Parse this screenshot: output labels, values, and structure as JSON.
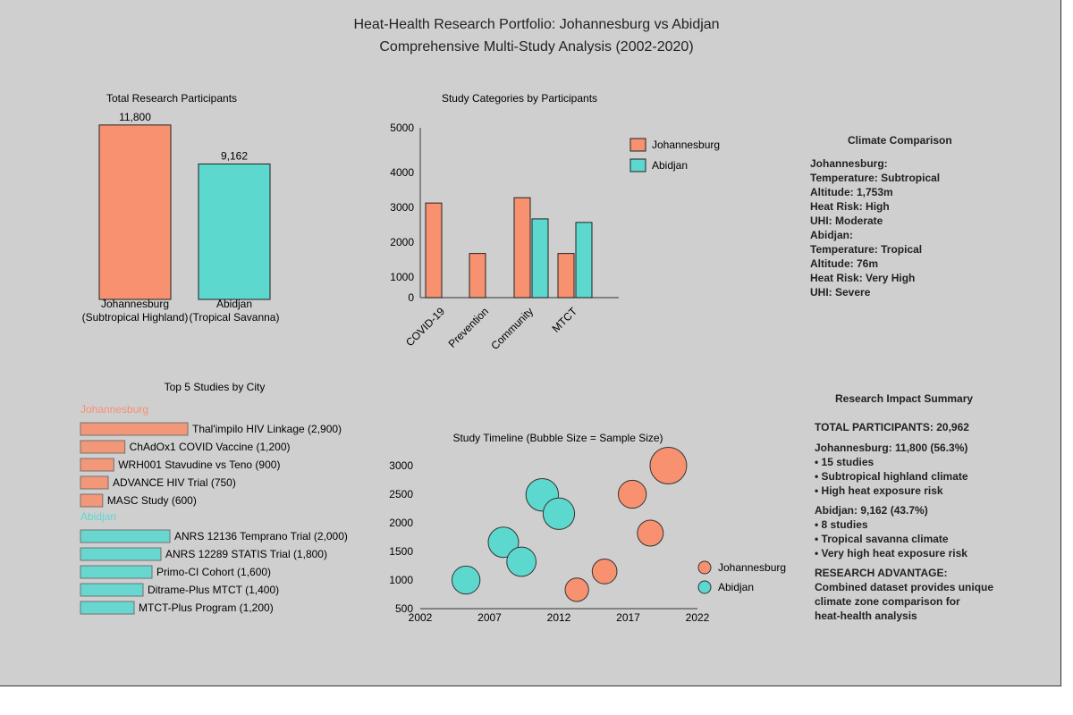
{
  "title": "Heat-Health Research Portfolio: Johannesburg vs Abidjan",
  "subtitle": "Comprehensive Multi-Study Analysis (2002-2020)",
  "colors": {
    "johannesburg": "#f79170",
    "abidjan": "#5cd8cf",
    "background": "#cfcfcf"
  },
  "chart_data": [
    {
      "type": "bar",
      "title": "Total Research Participants",
      "categories": [
        "Johannesburg\n(Subtropical Highland)",
        "Abidjan\n(Tropical Savanna)"
      ],
      "values": [
        11800,
        9162
      ],
      "data_labels": [
        "11,800",
        "9,162"
      ],
      "ylim": [
        0,
        13000
      ]
    },
    {
      "type": "bar",
      "title": "Study Categories by Participants",
      "categories": [
        "COVID-19",
        "Prevention",
        "Community",
        "MTCT"
      ],
      "series": [
        {
          "name": "Johannesburg",
          "values": [
            2300,
            1250,
            2450,
            1250
          ]
        },
        {
          "name": "Abidjan",
          "values": [
            null,
            null,
            1850,
            1750
          ]
        }
      ],
      "yticks": [
        0,
        1000,
        2000,
        3000,
        4000,
        5000
      ],
      "ylim": [
        0,
        5000
      ],
      "legend": "top-right"
    },
    {
      "type": "bar",
      "orientation": "horizontal",
      "title": "Top 5 Studies by City",
      "groups": [
        {
          "name": "Johannesburg",
          "items": [
            {
              "label": "Thal'impilo HIV Linkage (2,900)",
              "value": 2900
            },
            {
              "label": "ChAdOx1 COVID Vaccine (1,200)",
              "value": 1200
            },
            {
              "label": "WRH001 Stavudine vs Teno (900)",
              "value": 900
            },
            {
              "label": "ADVANCE HIV Trial (750)",
              "value": 750
            },
            {
              "label": "MASC Study (600)",
              "value": 600
            }
          ]
        },
        {
          "name": "Abidjan",
          "items": [
            {
              "label": "ANRS 12136 Temprano Trial (2,000)",
              "value": 2000
            },
            {
              "label": "ANRS 12289 STATIS Trial (1,800)",
              "value": 1800
            },
            {
              "label": "Primo-CI Cohort (1,600)",
              "value": 1600
            },
            {
              "label": "Ditrame-Plus MTCT (1,400)",
              "value": 1400
            },
            {
              "label": "MTCT-Plus Program (1,200)",
              "value": 1200
            }
          ]
        }
      ]
    },
    {
      "type": "scatter",
      "title": "Study Timeline (Bubble Size = Sample Size)",
      "xticks": [
        2002,
        2007,
        2012,
        2017,
        2022
      ],
      "yticks": [
        500,
        1000,
        1500,
        2000,
        2500,
        3000
      ],
      "xlim": [
        2002,
        2022
      ],
      "ylim": [
        500,
        3000
      ],
      "legend": "right",
      "series": [
        {
          "name": "Johannesburg",
          "points": [
            {
              "x": 2019.9,
              "y": 3000,
              "size": 2900
            },
            {
              "x": 2017.3,
              "y": 2500,
              "size": 1200
            },
            {
              "x": 2018.6,
              "y": 1820,
              "size": 900
            },
            {
              "x": 2015.3,
              "y": 1150,
              "size": 750
            },
            {
              "x": 2013.3,
              "y": 830,
              "size": 600
            }
          ]
        },
        {
          "name": "Abidjan",
          "points": [
            {
              "x": 2010.8,
              "y": 2490,
              "size": 2000
            },
            {
              "x": 2012.0,
              "y": 2160,
              "size": 1800
            },
            {
              "x": 2008.0,
              "y": 1660,
              "size": 1600
            },
            {
              "x": 2009.3,
              "y": 1320,
              "size": 1400
            },
            {
              "x": 2005.3,
              "y": 1000,
              "size": 1200
            }
          ]
        }
      ]
    }
  ],
  "climate": {
    "title": "Climate Comparison",
    "lines": [
      "Johannesburg:",
      "Temperature: Subtropical",
      "Altitude: 1,753m",
      "Heat Risk: High",
      "UHI: Moderate",
      "Abidjan:",
      "Temperature: Tropical",
      "Altitude: 76m",
      "Heat Risk: Very High",
      "UHI: Severe"
    ]
  },
  "impact": {
    "title": "Research Impact Summary",
    "total": "TOTAL PARTICIPANTS: 20,962",
    "jhb": [
      "Johannesburg: 11,800 (56.3%)",
      "• 15 studies",
      "• Subtropical highland climate",
      "• High heat exposure risk"
    ],
    "abj": [
      "Abidjan: 9,162 (43.7%)",
      "• 8 studies",
      "• Tropical savanna climate",
      "• Very high heat exposure risk"
    ],
    "advantage": [
      "RESEARCH ADVANTAGE:",
      "Combined dataset provides unique",
      "climate zone comparison for",
      "heat-health analysis"
    ]
  }
}
